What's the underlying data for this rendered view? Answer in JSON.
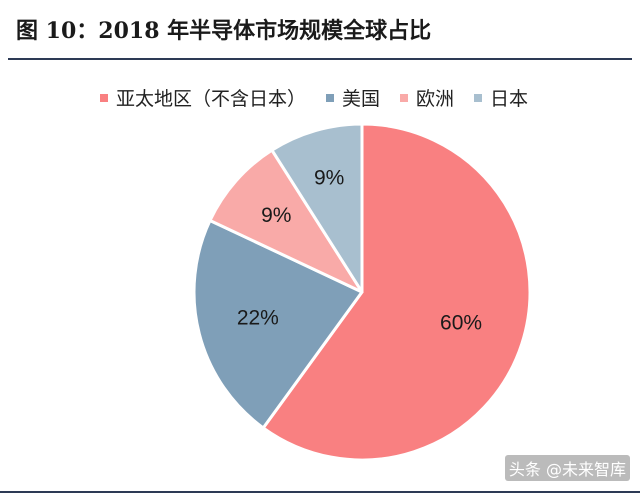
{
  "title": "图 10：2018 年半导体市场规模全球占比",
  "watermark": "头条 @未来智库",
  "chart_data": {
    "type": "pie",
    "title": "",
    "categories": [
      "亚太地区（不含日本）",
      "美国",
      "欧洲",
      "日本"
    ],
    "values": [
      60,
      22,
      9,
      9
    ],
    "labels": [
      "60%",
      "22%",
      "9%",
      "9%"
    ],
    "colors": [
      "#f98081",
      "#7f9fb8",
      "#f9aaa8",
      "#a8bfcf"
    ],
    "start_angle_deg": 0,
    "direction": "clockwise",
    "legend_position": "top",
    "legend_entries": [
      {
        "name": "亚太地区（不含日本）",
        "color": "#f98081"
      },
      {
        "name": "美国",
        "color": "#7f9fb8"
      },
      {
        "name": "欧洲",
        "color": "#f9aaa8"
      },
      {
        "name": "日本",
        "color": "#a8bfcf"
      }
    ]
  }
}
